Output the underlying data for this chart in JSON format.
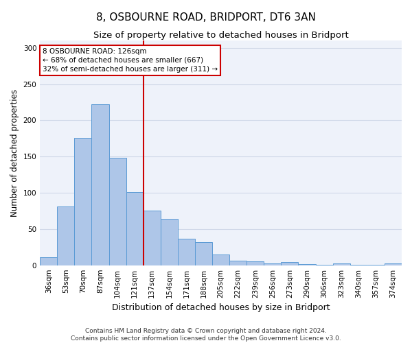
{
  "title": "8, OSBOURNE ROAD, BRIDPORT, DT6 3AN",
  "subtitle": "Size of property relative to detached houses in Bridport",
  "xlabel": "Distribution of detached houses by size in Bridport",
  "ylabel": "Number of detached properties",
  "footer_lines": [
    "Contains HM Land Registry data © Crown copyright and database right 2024.",
    "Contains public sector information licensed under the Open Government Licence v3.0."
  ],
  "bin_labels": [
    "36sqm",
    "53sqm",
    "70sqm",
    "87sqm",
    "104sqm",
    "121sqm",
    "137sqm",
    "154sqm",
    "171sqm",
    "188sqm",
    "205sqm",
    "222sqm",
    "239sqm",
    "256sqm",
    "273sqm",
    "290sqm",
    "306sqm",
    "323sqm",
    "340sqm",
    "357sqm",
    "374sqm"
  ],
  "bar_values": [
    11,
    81,
    176,
    222,
    148,
    101,
    75,
    64,
    37,
    32,
    15,
    6,
    5,
    3,
    4,
    2,
    1,
    3,
    1,
    1,
    3
  ],
  "bar_color": "#aec6e8",
  "bar_edge_color": "#5b9bd5",
  "property_line_x": 5.5,
  "property_line_color": "#cc0000",
  "annotation_text": "8 OSBOURNE ROAD: 126sqm\n← 68% of detached houses are smaller (667)\n32% of semi-detached houses are larger (311) →",
  "annotation_box_color": "#cc0000",
  "annotation_text_color": "#000000",
  "ylim": [
    0,
    310
  ],
  "yticks": [
    0,
    50,
    100,
    150,
    200,
    250,
    300
  ],
  "grid_color": "#d0d8e8",
  "background_color": "#eef2fa",
  "title_fontsize": 11,
  "subtitle_fontsize": 9.5,
  "xlabel_fontsize": 9,
  "ylabel_fontsize": 8.5,
  "tick_fontsize": 7.5,
  "footer_fontsize": 6.5,
  "annot_fontsize": 7.5
}
